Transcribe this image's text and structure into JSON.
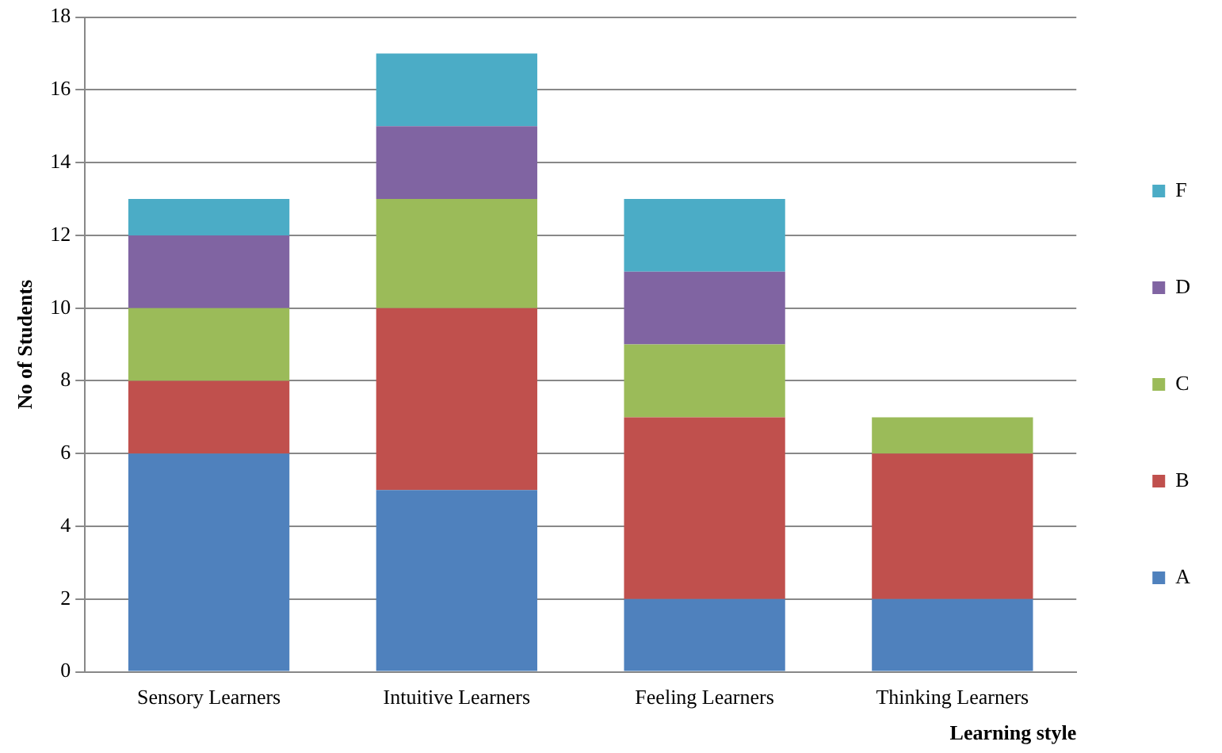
{
  "chart_data": {
    "type": "bar",
    "stacked": true,
    "xlabel": "Learning style",
    "ylabel": "No of Students",
    "categories": [
      "Sensory Learners",
      "Intuitive Learners",
      "Feeling Learners",
      "Thinking Learners"
    ],
    "series": [
      {
        "name": "A",
        "color": "#4f81bd",
        "values": [
          6,
          5,
          2,
          2
        ]
      },
      {
        "name": "B",
        "color": "#c0504d",
        "values": [
          2,
          5,
          5,
          4
        ]
      },
      {
        "name": "C",
        "color": "#9bbb59",
        "values": [
          2,
          3,
          2,
          1
        ]
      },
      {
        "name": "D",
        "color": "#8064a2",
        "values": [
          2,
          2,
          2,
          0
        ]
      },
      {
        "name": "F",
        "color": "#4bacc6",
        "values": [
          1,
          2,
          2,
          0
        ]
      }
    ],
    "ylim": [
      0,
      18
    ],
    "yticks": [
      0,
      2,
      4,
      6,
      8,
      10,
      12,
      14,
      16,
      18
    ],
    "grid": "y",
    "legend": "right"
  }
}
